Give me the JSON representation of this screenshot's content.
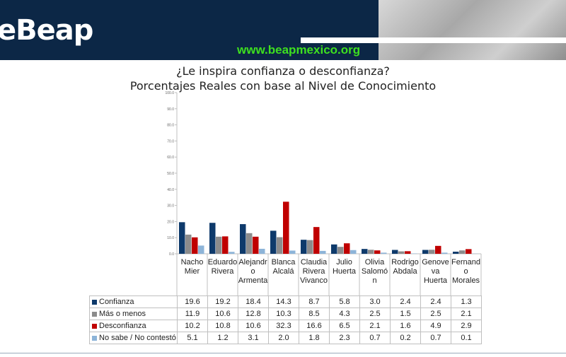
{
  "header": {
    "logo_text": "eBeap",
    "url_text": "www.beapmexico.org"
  },
  "chart_data": {
    "type": "bar",
    "title_line1": "¿Le inspira confianza o desconfianza?",
    "title_line2": "Porcentajes Reales con base al Nivel de Conocimiento",
    "xlabel": "",
    "ylabel": "",
    "ylim": [
      0,
      100
    ],
    "yticks": [
      "0.0",
      "10.0",
      "20.0",
      "30.0",
      "40.0",
      "50.0",
      "60.0",
      "70.0",
      "80.0",
      "90.0",
      "100.0"
    ],
    "categories": [
      [
        "Nacho",
        "Mier"
      ],
      [
        "Eduardo",
        "Rivera"
      ],
      [
        "Alejandr",
        "o",
        "Armenta"
      ],
      [
        "Blanca",
        "Alcalá"
      ],
      [
        "Claudia",
        "Rivera",
        "Vivanco"
      ],
      [
        "Julio",
        "Huerta"
      ],
      [
        "Olivia",
        "Salomó",
        "n"
      ],
      [
        "Rodrigo",
        "Abdala"
      ],
      [
        "Genove",
        "va",
        "Huerta"
      ],
      [
        "Fernand",
        "o",
        "Morales"
      ]
    ],
    "series": [
      {
        "name": "Confianza",
        "color": "#0e3a6b",
        "values": [
          19.6,
          19.2,
          18.4,
          14.3,
          8.7,
          5.8,
          3.0,
          2.4,
          2.4,
          1.3
        ]
      },
      {
        "name": "Más o menos",
        "color": "#8c8c8c",
        "values": [
          11.9,
          10.6,
          12.8,
          10.3,
          8.5,
          4.3,
          2.5,
          1.5,
          2.5,
          2.1
        ]
      },
      {
        "name": "Desconfianza",
        "color": "#c00000",
        "values": [
          10.2,
          10.8,
          10.6,
          32.3,
          16.6,
          6.5,
          2.1,
          1.6,
          4.9,
          2.9
        ]
      },
      {
        "name": "No sabe / No contestó",
        "color": "#8db4d8",
        "values": [
          5.1,
          1.2,
          3.1,
          2.0,
          1.8,
          2.3,
          0.7,
          0.2,
          0.7,
          0.1
        ]
      }
    ],
    "table_values": [
      [
        "19.6",
        "19.2",
        "18.4",
        "14.3",
        "8.7",
        "5.8",
        "3.0",
        "2.4",
        "2.4",
        "1.3"
      ],
      [
        "11.9",
        "10.6",
        "12.8",
        "10.3",
        "8.5",
        "4.3",
        "2.5",
        "1.5",
        "2.5",
        "2.1"
      ],
      [
        "10.2",
        "10.8",
        "10.6",
        "32.3",
        "16.6",
        "6.5",
        "2.1",
        "1.6",
        "4.9",
        "2.9"
      ],
      [
        "5.1",
        "1.2",
        "3.1",
        "2.0",
        "1.8",
        "2.3",
        "0.7",
        "0.2",
        "0.7",
        "0.1"
      ]
    ],
    "grid": false,
    "legend": "data-table-left"
  }
}
